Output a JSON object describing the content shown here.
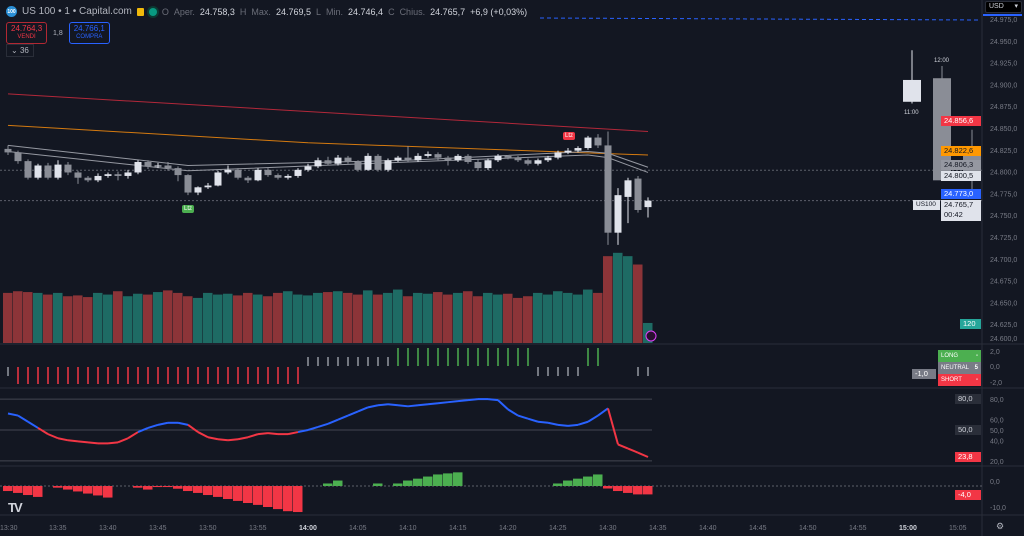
{
  "header": {
    "symbol": "US 100 • 1 • Capital.com",
    "logo": "100",
    "o_label": "O",
    "open_label": "Aper.",
    "open": "24.758,3",
    "h_label": "H",
    "high_label": "Max.",
    "high": "24.769,5",
    "l_label": "L",
    "low_label": "Min.",
    "low": "24.746,4",
    "c_label": "C",
    "close_label": "Chius.",
    "close": "24.765,7",
    "change": "+6,9 (+0,03%)"
  },
  "trade": {
    "sell_price": "24.764,3",
    "sell_label": "VENDI",
    "spread": "1,8",
    "buy_price": "24.766,1",
    "buy_label": "COMPRA"
  },
  "indicators_collapsed": "36",
  "currency": "USD",
  "colors": {
    "bg": "#131722",
    "up": "#e0e3eb",
    "down": "#8a8d96",
    "vol_up": "#1e6b64",
    "vol_down": "#8c3438",
    "long": "#4caf50",
    "short": "#f23645",
    "rsi_up": "#2962ff",
    "rsi_down": "#f23645",
    "ma_slow": "#b2283a",
    "ma_mid": "#d47a10",
    "ma_fast": "#9598a1"
  },
  "price_axis": [
    "24.975,0",
    "24.950,0",
    "24.925,0",
    "24.900,0",
    "24.875,0",
    "24.850,0",
    "24.825,0",
    "24.800,0",
    "24.775,0",
    "24.750,0",
    "24.725,0",
    "24.700,0",
    "24.675,0",
    "24.650,0",
    "24.625,0",
    "24.600,0"
  ],
  "price_tags": [
    {
      "text": "24.856,6",
      "bg": "#f23645",
      "color": "#fff",
      "price": 24856.6
    },
    {
      "text": "24.822,6",
      "bg": "#ff9800",
      "color": "#131722",
      "price": 24822.6
    },
    {
      "text": "24.806,3",
      "bg": "#9598a1",
      "color": "#131722",
      "price": 24806.3
    },
    {
      "text": "24.800,5",
      "bg": "#e0e3eb",
      "color": "#131722",
      "price": 24800.5
    },
    {
      "text": "24.773,0",
      "bg": "#2962ff",
      "color": "#fff",
      "price": 24773.0
    }
  ],
  "last_price": {
    "text": "24.765,7",
    "countdown": "00:42",
    "symbol_tag": "US100"
  },
  "volume_tag": "120",
  "time_axis": [
    "13:30",
    "13:35",
    "13:40",
    "13:45",
    "13:50",
    "13:55",
    "14:00",
    "14:05",
    "14:10",
    "14:15",
    "14:20",
    "14:25",
    "14:30",
    "14:35",
    "14:40",
    "14:45",
    "14:50",
    "14:55",
    "15:00",
    "15:05"
  ],
  "chart_data": {
    "type": "candlestick",
    "interval": "1 min",
    "start": "13:30",
    "candles": [
      [
        24825,
        24829,
        24818,
        24821
      ],
      [
        24821,
        24823,
        24808,
        24811
      ],
      [
        24811,
        24813,
        24790,
        24792
      ],
      [
        24792,
        24808,
        24790,
        24806
      ],
      [
        24806,
        24809,
        24790,
        24792
      ],
      [
        24792,
        24812,
        24790,
        24807
      ],
      [
        24807,
        24810,
        24795,
        24798
      ],
      [
        24798,
        24800,
        24785,
        24792
      ],
      [
        24792,
        24794,
        24787,
        24789
      ],
      [
        24789,
        24797,
        24787,
        24794
      ],
      [
        24794,
        24798,
        24792,
        24796
      ],
      [
        24796,
        24799,
        24789,
        24794
      ],
      [
        24794,
        24801,
        24791,
        24798
      ],
      [
        24798,
        24812,
        24796,
        24810
      ],
      [
        24810,
        24812,
        24802,
        24805
      ],
      [
        24805,
        24809,
        24803,
        24806
      ],
      [
        24806,
        24810,
        24800,
        24803
      ],
      [
        24803,
        24805,
        24788,
        24795
      ],
      [
        24795,
        24796,
        24772,
        24775
      ],
      [
        24775,
        24782,
        24772,
        24781
      ],
      [
        24781,
        24786,
        24779,
        24783
      ],
      [
        24783,
        24800,
        24782,
        24798
      ],
      [
        24798,
        24806,
        24796,
        24801
      ],
      [
        24801,
        24803,
        24790,
        24792
      ],
      [
        24792,
        24794,
        24786,
        24789
      ],
      [
        24789,
        24803,
        24788,
        24801
      ],
      [
        24801,
        24803,
        24793,
        24795
      ],
      [
        24795,
        24797,
        24790,
        24792
      ],
      [
        24792,
        24796,
        24790,
        24794
      ],
      [
        24794,
        24803,
        24792,
        24801
      ],
      [
        24801,
        24808,
        24799,
        24805
      ],
      [
        24805,
        24815,
        24803,
        24812
      ],
      [
        24812,
        24816,
        24806,
        24808
      ],
      [
        24808,
        24818,
        24806,
        24815
      ],
      [
        24815,
        24817,
        24808,
        24810
      ],
      [
        24810,
        24812,
        24799,
        24801
      ],
      [
        24801,
        24820,
        24800,
        24817
      ],
      [
        24817,
        24819,
        24799,
        24801
      ],
      [
        24801,
        24814,
        24799,
        24812
      ],
      [
        24812,
        24817,
        24810,
        24815
      ],
      [
        24815,
        24828,
        24810,
        24812
      ],
      [
        24812,
        24820,
        24810,
        24817
      ],
      [
        24817,
        24822,
        24815,
        24819
      ],
      [
        24819,
        24821,
        24812,
        24815
      ],
      [
        24815,
        24817,
        24806,
        24812
      ],
      [
        24812,
        24819,
        24810,
        24817
      ],
      [
        24817,
        24819,
        24808,
        24810
      ],
      [
        24810,
        24813,
        24800,
        24803
      ],
      [
        24803,
        24814,
        24801,
        24812
      ],
      [
        24812,
        24819,
        24810,
        24817
      ],
      [
        24817,
        24818,
        24813,
        24815
      ],
      [
        24815,
        24817,
        24810,
        24812
      ],
      [
        24812,
        24814,
        24806,
        24808
      ],
      [
        24808,
        24814,
        24806,
        24812
      ],
      [
        24812,
        24817,
        24810,
        24815
      ],
      [
        24815,
        24823,
        24813,
        24821
      ],
      [
        24821,
        24826,
        24819,
        24823
      ],
      [
        24823,
        24828,
        24821,
        24826
      ],
      [
        24826,
        24840,
        24824,
        24838
      ],
      [
        24838,
        24842,
        24826,
        24829
      ],
      [
        24829,
        24845,
        24715,
        24729
      ],
      [
        24729,
        24780,
        24715,
        24772
      ],
      [
        24770,
        24792,
        24740,
        24789
      ],
      [
        24791,
        24794,
        24752,
        24755
      ],
      [
        24758.3,
        24769.5,
        24746.4,
        24765.7
      ]
    ],
    "volumes": [
      300,
      310,
      305,
      300,
      290,
      300,
      280,
      285,
      275,
      300,
      290,
      310,
      280,
      295,
      290,
      305,
      315,
      300,
      280,
      270,
      300,
      290,
      295,
      285,
      300,
      290,
      280,
      300,
      310,
      290,
      285,
      300,
      305,
      310,
      300,
      290,
      315,
      290,
      300,
      320,
      280,
      300,
      295,
      305,
      290,
      300,
      310,
      280,
      300,
      290,
      295,
      270,
      280,
      300,
      290,
      310,
      300,
      290,
      320,
      300,
      520,
      540,
      520,
      470,
      120
    ],
    "other_candles": [
      {
        "label": "11:00",
        "ohlc": [
          24879,
          24938,
          24877,
          24904
        ]
      },
      {
        "label": "12:00",
        "ohlc": [
          24906,
          24920,
          24790,
          24789
        ]
      },
      {
        "label": "",
        "ohlc": [
          24818,
          24847,
          24769,
          24799
        ]
      }
    ],
    "moving_averages": [
      {
        "color": "ma_slow",
        "values": [
          [
            0,
            24888
          ],
          [
            64,
            24845
          ]
        ]
      },
      {
        "color": "ma_mid",
        "values": [
          [
            0,
            24852
          ],
          [
            30,
            24832
          ],
          [
            64,
            24818
          ]
        ]
      },
      {
        "color": "ma_fast",
        "values": [
          [
            0,
            24829
          ],
          [
            18,
            24806
          ],
          [
            40,
            24812
          ],
          [
            58,
            24822
          ],
          [
            60,
            24820
          ],
          [
            64,
            24804
          ]
        ]
      },
      {
        "color": "ma_fast",
        "values": [
          [
            0,
            24822
          ],
          [
            18,
            24800
          ],
          [
            40,
            24810
          ],
          [
            58,
            24818
          ],
          [
            60,
            24815
          ],
          [
            64,
            24798
          ]
        ]
      }
    ],
    "signal_pane": {
      "axis": [
        "2,0",
        "0,0",
        "-2,0"
      ],
      "value_tag": "-1,0",
      "legend": [
        {
          "label": "LONG",
          "value": "-",
          "bg": "#4caf50"
        },
        {
          "label": "NEUTRAL",
          "value": "5",
          "bg": "#787b86"
        },
        {
          "label": "SHORT",
          "value": "-",
          "bg": "#f23645"
        }
      ],
      "signals": [
        -1,
        -2,
        -2,
        -2,
        -2,
        -2,
        -2,
        -2,
        -2,
        -2,
        -2,
        -2,
        -2,
        -2,
        -2,
        -2,
        -2,
        -2,
        -2,
        -2,
        -2,
        -2,
        -2,
        -2,
        -2,
        -2,
        -2,
        -2,
        -2,
        -2,
        1,
        1,
        1,
        1,
        1,
        1,
        1,
        1,
        1,
        2,
        2,
        2,
        2,
        2,
        2,
        2,
        2,
        2,
        2,
        2,
        2,
        2,
        2,
        -1,
        -1,
        -1,
        -1,
        -1,
        2,
        2,
        0,
        0,
        0,
        -1,
        -1
      ]
    },
    "oscillator_pane": {
      "axis": [
        "80,0",
        "60,0",
        "50,0",
        "40,0",
        "20,0"
      ],
      "tags": [
        "80,0",
        "50,0",
        "23,8"
      ],
      "values": [
        66,
        64,
        58,
        52,
        46,
        42,
        40,
        39,
        38,
        37,
        37,
        38,
        42,
        48,
        52,
        55,
        57,
        57,
        55,
        48,
        43,
        41,
        40,
        41,
        43,
        46,
        47,
        46,
        46,
        48,
        50,
        53,
        56,
        60,
        64,
        68,
        72,
        74,
        75,
        74,
        73,
        74,
        75,
        76,
        77,
        78,
        79,
        80,
        80,
        79,
        70,
        64,
        61,
        58,
        57,
        55,
        54,
        55,
        58,
        64,
        71,
        36,
        32,
        28,
        23.8
      ]
    },
    "histogram_pane": {
      "axis": [
        "0,0",
        "-10,0"
      ],
      "tag": "-4,0",
      "values": [
        -2.4,
        -3.3,
        -4.3,
        -5.2,
        0,
        -0.8,
        -1.7,
        -2.6,
        -3.6,
        -4.5,
        -5.5,
        0,
        0,
        -0.8,
        -1.7,
        -0.5,
        -0.5,
        -1.3,
        -2.4,
        -3.3,
        -4.3,
        -5.2,
        -6.2,
        -7.1,
        -8.1,
        -9,
        -10,
        -11,
        -12,
        -12.4,
        0,
        0,
        1.2,
        2.6,
        0,
        0,
        0,
        1.2,
        0,
        1.2,
        2.6,
        3.5,
        4.5,
        5.5,
        6,
        6.5,
        0,
        0,
        0,
        0,
        0,
        0,
        0,
        0,
        0,
        1.2,
        2.6,
        3.5,
        4.5,
        5.5,
        -1.2,
        -2.4,
        -3.3,
        -4,
        -4
      ]
    }
  },
  "markers": [
    {
      "text": "Ltz",
      "bg": "#4caf50"
    },
    {
      "text": "Ltz",
      "bg": "#f23645"
    }
  ],
  "logo_text": "TV"
}
